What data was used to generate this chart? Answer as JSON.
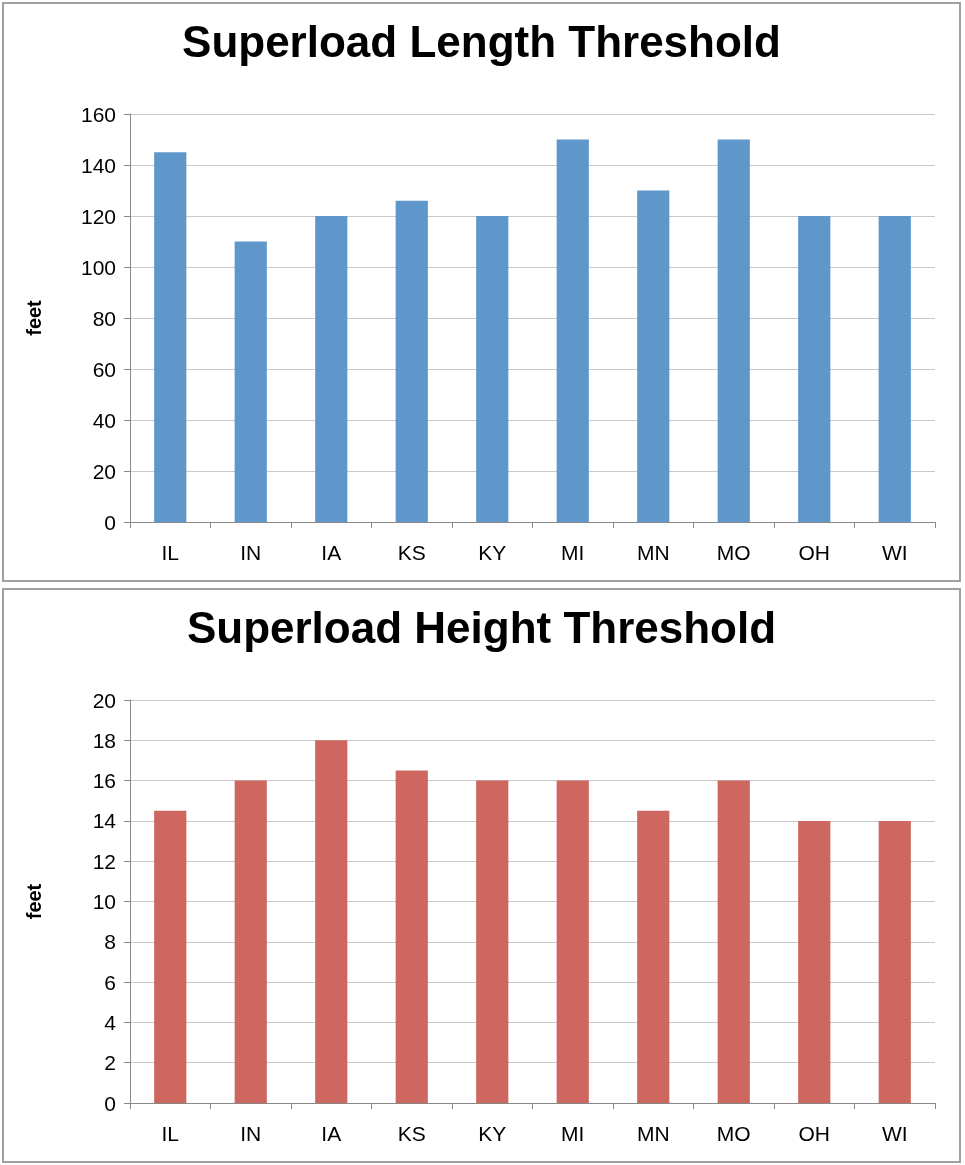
{
  "chart_data": [
    {
      "type": "bar",
      "title": "Superload Length Threshold",
      "ylabel": "feet",
      "categories": [
        "IL",
        "IN",
        "IA",
        "KS",
        "KY",
        "MI",
        "MN",
        "MO",
        "OH",
        "WI"
      ],
      "values": [
        145,
        110,
        120,
        126,
        120,
        150,
        130,
        150,
        120,
        120
      ],
      "color": "#5f97cb",
      "ylim": [
        0,
        160
      ],
      "yticks": [
        0,
        20,
        40,
        60,
        80,
        100,
        120,
        140,
        160
      ],
      "grid": "y"
    },
    {
      "type": "bar",
      "title": "Superload Height Threshold",
      "ylabel": "feet",
      "categories": [
        "IL",
        "IN",
        "IA",
        "KS",
        "KY",
        "MI",
        "MN",
        "MO",
        "OH",
        "WI"
      ],
      "values": [
        14.5,
        16,
        18,
        16.5,
        16,
        16,
        14.5,
        16,
        14,
        14
      ],
      "color": "#cd6760",
      "ylim": [
        0,
        20
      ],
      "yticks": [
        0,
        2,
        4,
        6,
        8,
        10,
        12,
        14,
        16,
        18,
        20
      ],
      "grid": "y"
    }
  ]
}
